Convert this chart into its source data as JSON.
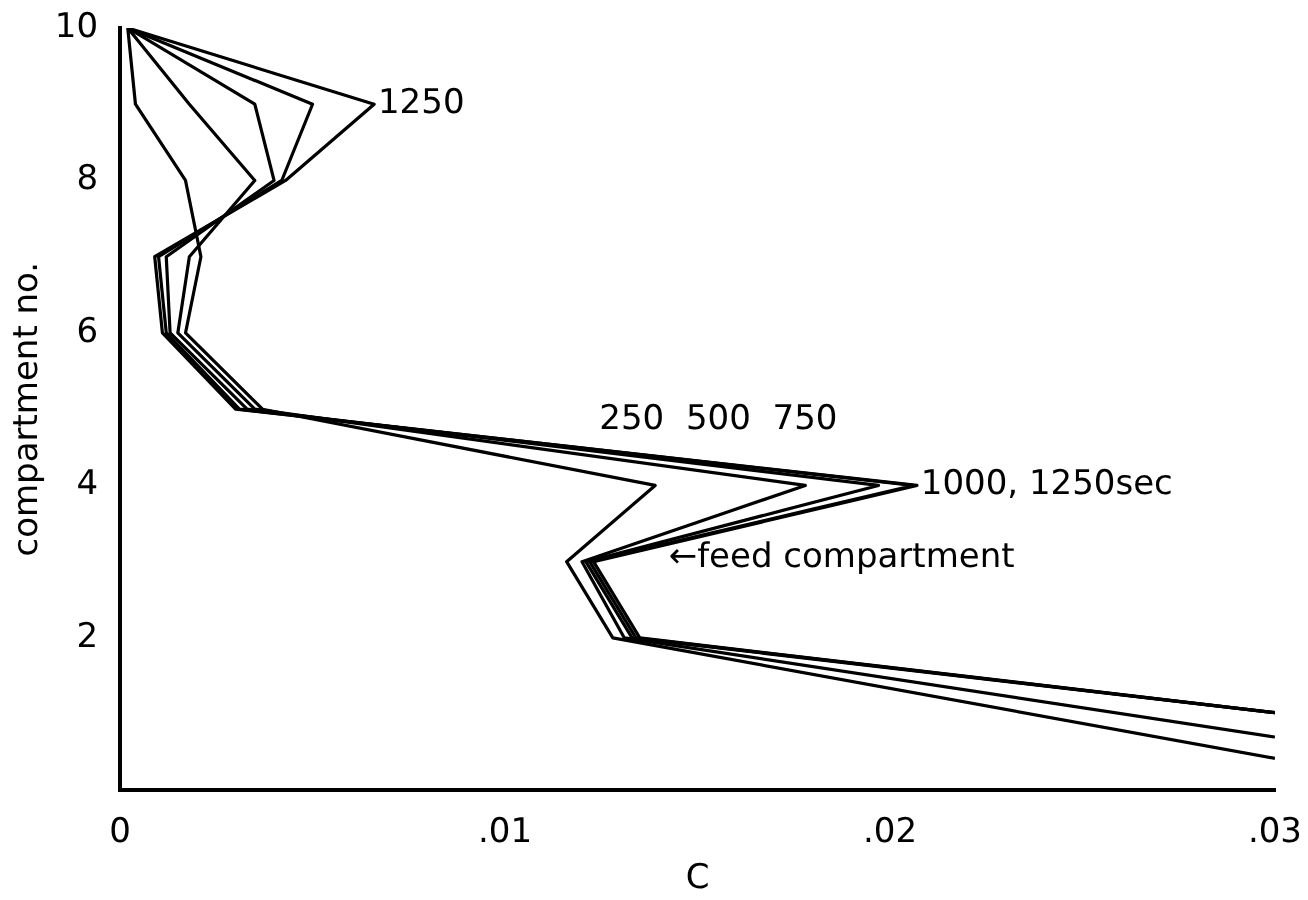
{
  "chart_data": {
    "type": "line",
    "xlabel": "C",
    "ylabel": "compartment no.",
    "xlim": [
      0,
      0.03
    ],
    "xticks": [
      {
        "value": 0,
        "label": "0"
      },
      {
        "value": 0.01,
        "label": ".01"
      },
      {
        "value": 0.02,
        "label": ".02"
      },
      {
        "value": 0.03,
        "label": ".03"
      }
    ],
    "ylim": [
      0,
      10
    ],
    "yticks": [
      2,
      4,
      6,
      8,
      10
    ],
    "grid": false,
    "legend": false,
    "marker": "none",
    "line_style": "solid",
    "series": [
      {
        "color": "#000000",
        "x": [
          0.03,
          0.0128,
          0.0116,
          0.0139,
          0.0037,
          0.0017,
          0.0021,
          0.0017,
          0.0004,
          0.0002
        ],
        "values": [
          0.42,
          2,
          3,
          4,
          5,
          6,
          7,
          8,
          9,
          10
        ]
      },
      {
        "color": "#000000",
        "x": [
          0.03,
          0.0131,
          0.012,
          0.0178,
          0.0035,
          0.0015,
          0.0018,
          0.0035,
          0.0018,
          0.0002
        ],
        "values": [
          0.7,
          2,
          3,
          4,
          5,
          6,
          7,
          8,
          9,
          10
        ]
      },
      {
        "color": "#000000",
        "x": [
          0.03,
          0.0133,
          0.0121,
          0.0197,
          0.0033,
          0.0013,
          0.0012,
          0.004,
          0.0035,
          0.0002
        ],
        "values": [
          1.02,
          2,
          3,
          4,
          5,
          6,
          7,
          8,
          9,
          10
        ]
      },
      {
        "color": "#000000",
        "x": [
          0.03,
          0.0134,
          0.0122,
          0.0206,
          0.0031,
          0.0012,
          0.001,
          0.0042,
          0.005,
          0.0002
        ],
        "values": [
          1.02,
          2,
          3,
          4,
          5,
          6,
          7,
          8,
          9,
          10
        ]
      },
      {
        "color": "#000000",
        "x": [
          0.03,
          0.0135,
          0.0123,
          0.0207,
          0.003,
          0.0011,
          0.0009,
          0.0043,
          0.0066,
          0.0002
        ],
        "values": [
          1.02,
          2,
          3,
          4,
          5,
          6,
          7,
          8,
          9,
          10
        ]
      }
    ],
    "annotations": [
      {
        "text": "1250",
        "x": 0.0067,
        "y": 9
      },
      "250",
      "500",
      "750",
      {
        "text": "1000, 1250sec",
        "x": 0.0208,
        "y": 4
      },
      "←feed compartment"
    ]
  }
}
